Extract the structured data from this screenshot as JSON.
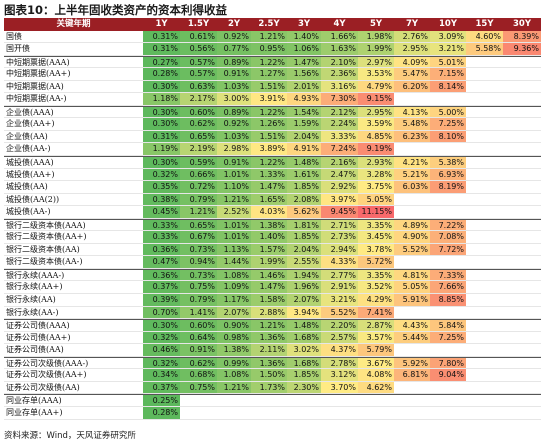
{
  "title": "图表10：上半年固收类资产的资本利得收益",
  "source": "资料来源：Wind，天风证券研究所",
  "header": [
    "关键年期",
    "1Y",
    "1.5Y",
    "2Y",
    "2.5Y",
    "3Y",
    "4Y",
    "5Y",
    "7Y",
    "10Y",
    "15Y",
    "30Y"
  ],
  "rows": [
    {
      "label": "国债",
      "values": [
        "0.31%",
        "0.61%",
        "0.92%",
        "1.21%",
        "1.40%",
        "1.66%",
        "1.98%",
        "2.76%",
        "3.09%",
        "4.60%",
        "8.39%"
      ]
    },
    {
      "label": "国开债",
      "values": [
        "0.31%",
        "0.56%",
        "0.77%",
        "0.95%",
        "1.06%",
        "1.63%",
        "1.99%",
        "2.95%",
        "3.21%",
        "5.58%",
        "9.36%"
      ]
    },
    {
      "label": "中短期票据(AAA)",
      "values": [
        "0.27%",
        "0.57%",
        "0.89%",
        "1.22%",
        "1.47%",
        "2.10%",
        "2.97%",
        "4.09%",
        "5.01%",
        "",
        ""
      ]
    },
    {
      "label": "中短期票据(AA+)",
      "values": [
        "0.28%",
        "0.57%",
        "0.91%",
        "1.27%",
        "1.56%",
        "2.36%",
        "3.53%",
        "5.47%",
        "7.15%",
        "",
        ""
      ]
    },
    {
      "label": "中短期票据(AA)",
      "values": [
        "0.30%",
        "0.63%",
        "1.03%",
        "1.51%",
        "2.01%",
        "3.16%",
        "4.79%",
        "6.20%",
        "8.14%",
        "",
        ""
      ]
    },
    {
      "label": "中短期票据(AA-)",
      "values": [
        "1.18%",
        "2.17%",
        "3.00%",
        "3.91%",
        "4.93%",
        "7.30%",
        "9.15%",
        "",
        "",
        "",
        ""
      ]
    },
    {
      "label": "企业债(AAA)",
      "values": [
        "0.30%",
        "0.60%",
        "0.89%",
        "1.22%",
        "1.54%",
        "2.12%",
        "2.95%",
        "4.13%",
        "5.00%",
        "",
        ""
      ]
    },
    {
      "label": "企业债(AA+)",
      "values": [
        "0.30%",
        "0.62%",
        "0.92%",
        "1.26%",
        "1.59%",
        "2.24%",
        "3.59%",
        "5.48%",
        "7.25%",
        "",
        ""
      ]
    },
    {
      "label": "企业债(AA)",
      "values": [
        "0.31%",
        "0.65%",
        "1.03%",
        "1.51%",
        "2.04%",
        "3.33%",
        "4.85%",
        "6.23%",
        "8.10%",
        "",
        ""
      ]
    },
    {
      "label": "企业债(AA-)",
      "values": [
        "1.19%",
        "2.19%",
        "2.98%",
        "3.89%",
        "4.91%",
        "7.24%",
        "9.19%",
        "",
        "",
        "",
        ""
      ]
    },
    {
      "label": "城投债(AAA)",
      "values": [
        "0.30%",
        "0.59%",
        "0.91%",
        "1.22%",
        "1.48%",
        "2.16%",
        "2.93%",
        "4.21%",
        "5.38%",
        "",
        ""
      ]
    },
    {
      "label": "城投债(AA+)",
      "values": [
        "0.32%",
        "0.66%",
        "1.01%",
        "1.33%",
        "1.61%",
        "2.47%",
        "3.28%",
        "5.21%",
        "6.93%",
        "",
        ""
      ]
    },
    {
      "label": "城投债(AA)",
      "values": [
        "0.35%",
        "0.72%",
        "1.10%",
        "1.47%",
        "1.85%",
        "2.92%",
        "3.75%",
        "6.03%",
        "8.19%",
        "",
        ""
      ]
    },
    {
      "label": "城投债(AA(2))",
      "values": [
        "0.38%",
        "0.79%",
        "1.21%",
        "1.65%",
        "2.08%",
        "3.97%",
        "5.05%",
        "",
        "",
        "",
        ""
      ]
    },
    {
      "label": "城投债(AA-)",
      "values": [
        "0.45%",
        "1.21%",
        "2.52%",
        "4.03%",
        "5.62%",
        "9.45%",
        "11.15%",
        "",
        "",
        "",
        ""
      ]
    },
    {
      "label": "银行二级资本债(AAA)",
      "values": [
        "0.33%",
        "0.65%",
        "1.01%",
        "1.38%",
        "1.81%",
        "2.71%",
        "3.35%",
        "4.89%",
        "7.22%",
        "",
        ""
      ]
    },
    {
      "label": "银行二级资本债(AA+)",
      "values": [
        "0.33%",
        "0.67%",
        "1.01%",
        "1.40%",
        "1.85%",
        "2.73%",
        "3.45%",
        "4.90%",
        "7.08%",
        "",
        ""
      ]
    },
    {
      "label": "银行二级资本债(AA)",
      "values": [
        "0.36%",
        "0.73%",
        "1.13%",
        "1.57%",
        "2.04%",
        "2.94%",
        "3.78%",
        "5.52%",
        "7.72%",
        "",
        ""
      ]
    },
    {
      "label": "银行二级资本债(AA-)",
      "values": [
        "0.47%",
        "0.94%",
        "1.44%",
        "1.99%",
        "2.55%",
        "4.33%",
        "5.72%",
        "",
        "",
        "",
        ""
      ]
    },
    {
      "label": "银行永续(AAA-)",
      "values": [
        "0.36%",
        "0.73%",
        "1.08%",
        "1.46%",
        "1.94%",
        "2.77%",
        "3.35%",
        "4.81%",
        "7.33%",
        "",
        ""
      ]
    },
    {
      "label": "银行永续(AA+)",
      "values": [
        "0.37%",
        "0.75%",
        "1.09%",
        "1.47%",
        "1.96%",
        "2.91%",
        "3.52%",
        "5.05%",
        "7.66%",
        "",
        ""
      ]
    },
    {
      "label": "银行永续(AA)",
      "values": [
        "0.39%",
        "0.79%",
        "1.17%",
        "1.58%",
        "2.07%",
        "3.21%",
        "4.29%",
        "5.91%",
        "8.85%",
        "",
        ""
      ]
    },
    {
      "label": "银行永续(AA-)",
      "values": [
        "0.70%",
        "1.41%",
        "2.07%",
        "2.88%",
        "3.94%",
        "5.52%",
        "7.41%",
        "",
        "",
        "",
        ""
      ]
    },
    {
      "label": "证券公司债(AAA)",
      "values": [
        "0.30%",
        "0.60%",
        "0.90%",
        "1.21%",
        "1.48%",
        "2.20%",
        "2.87%",
        "4.43%",
        "5.84%",
        "",
        ""
      ]
    },
    {
      "label": "证券公司债(AA+)",
      "values": [
        "0.32%",
        "0.64%",
        "0.98%",
        "1.36%",
        "1.68%",
        "2.57%",
        "3.57%",
        "5.44%",
        "7.25%",
        "",
        ""
      ]
    },
    {
      "label": "证券公司债(AA)",
      "values": [
        "0.46%",
        "0.91%",
        "1.38%",
        "2.11%",
        "3.02%",
        "4.37%",
        "5.79%",
        "",
        "",
        "",
        ""
      ]
    },
    {
      "label": "证券公司次级债(AAA-)",
      "values": [
        "0.32%",
        "0.62%",
        "0.99%",
        "1.36%",
        "1.68%",
        "2.78%",
        "3.67%",
        "5.92%",
        "7.80%",
        "",
        ""
      ]
    },
    {
      "label": "证券公司次级债(AA+)",
      "values": [
        "0.34%",
        "0.68%",
        "1.08%",
        "1.50%",
        "1.85%",
        "3.12%",
        "4.08%",
        "6.81%",
        "9.04%",
        "",
        ""
      ]
    },
    {
      "label": "证券公司次级债(AA)",
      "values": [
        "0.37%",
        "0.75%",
        "1.21%",
        "1.73%",
        "2.30%",
        "3.70%",
        "4.62%",
        "",
        "",
        "",
        ""
      ]
    },
    {
      "label": "同业存单(AAA)",
      "values": [
        "0.25%",
        "",
        "",
        "",
        "",
        "",
        "",
        "",
        "",
        "",
        ""
      ]
    },
    {
      "label": "同业存单(AA+)",
      "values": [
        "0.28%",
        "",
        "",
        "",
        "",
        "",
        "",
        "",
        "",
        "",
        ""
      ]
    }
  ],
  "colors": {
    "header_bg": "#9b1f24",
    "green": "#5cb85c",
    "yellow": "#ffeb84",
    "red": "#f8696b"
  }
}
